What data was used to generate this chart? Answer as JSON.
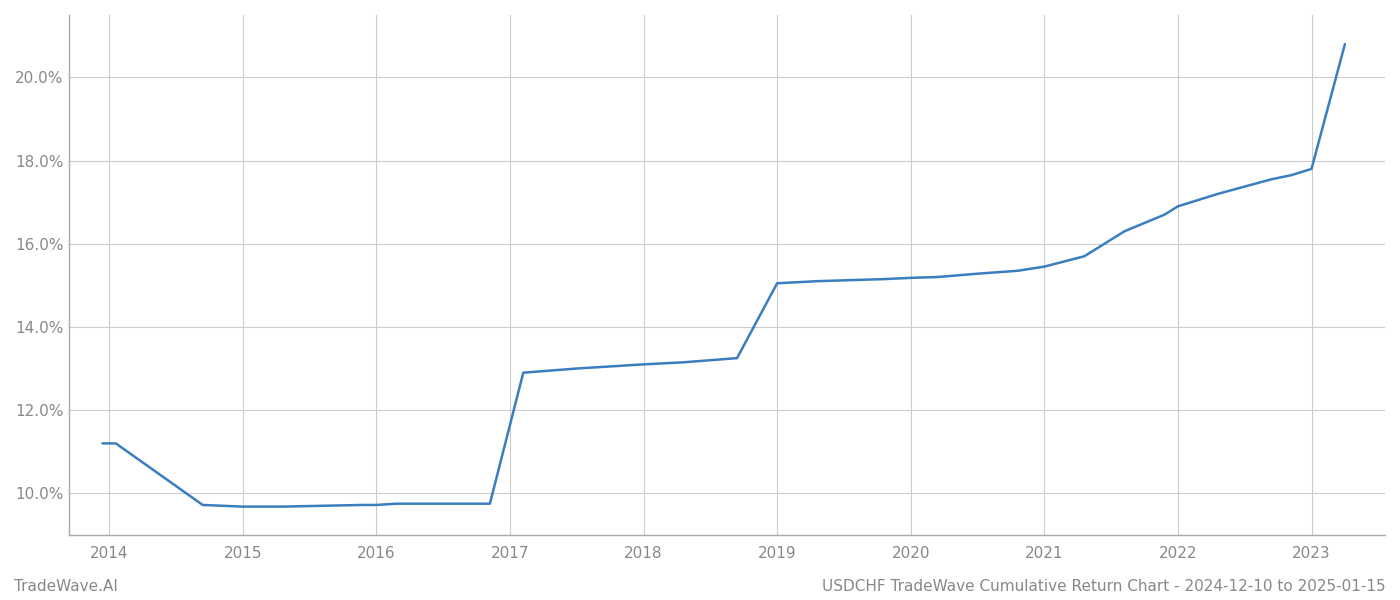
{
  "x_years": [
    2013.95,
    2014.05,
    2014.7,
    2015.0,
    2015.3,
    2015.9,
    2016.0,
    2016.15,
    2016.85,
    2017.1,
    2017.5,
    2018.0,
    2018.3,
    2018.7,
    2019.0,
    2019.3,
    2019.8,
    2020.0,
    2020.2,
    2020.5,
    2020.8,
    2021.0,
    2021.3,
    2021.6,
    2021.9,
    2022.0,
    2022.3,
    2022.7,
    2022.85,
    2023.0,
    2023.25
  ],
  "y_values": [
    11.2,
    11.2,
    9.72,
    9.68,
    9.68,
    9.72,
    9.72,
    9.75,
    9.75,
    12.9,
    13.0,
    13.1,
    13.15,
    13.25,
    15.05,
    15.1,
    15.15,
    15.18,
    15.2,
    15.28,
    15.35,
    15.45,
    15.7,
    16.3,
    16.7,
    16.9,
    17.2,
    17.55,
    17.65,
    17.8,
    20.8
  ],
  "line_color": "#3a7ebf",
  "line_width": 1.8,
  "background_color": "#ffffff",
  "grid_color": "#cccccc",
  "ylabel_ticks": [
    10.0,
    12.0,
    14.0,
    16.0,
    18.0,
    20.0
  ],
  "xtick_years": [
    2014,
    2015,
    2016,
    2017,
    2018,
    2019,
    2020,
    2021,
    2022,
    2023
  ],
  "ylim": [
    9.0,
    21.5
  ],
  "xlim": [
    2013.7,
    2023.55
  ],
  "footer_left": "TradeWave.AI",
  "footer_right": "USDCHF TradeWave Cumulative Return Chart - 2024-12-10 to 2025-01-15",
  "footer_color": "#888888",
  "footer_fontsize": 11,
  "tick_color": "#888888",
  "tick_fontsize": 11,
  "spine_color": "#aaaaaa"
}
